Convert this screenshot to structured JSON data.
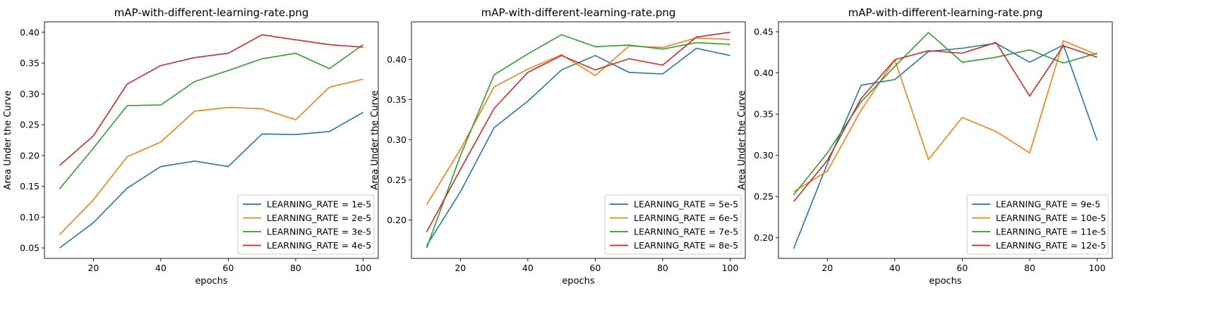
{
  "chart_data": [
    {
      "type": "line",
      "title": "mAP-with-different-learning-rate.png",
      "xlabel": "epochs",
      "ylabel": "Area Under the Curve",
      "x": [
        10,
        20,
        30,
        40,
        50,
        60,
        70,
        80,
        90,
        100
      ],
      "xlim": [
        5.5,
        104.5
      ],
      "ylim": [
        0.033,
        0.417
      ],
      "xticks": [
        20,
        40,
        60,
        80,
        100
      ],
      "yticks": [
        0.05,
        0.1,
        0.15,
        0.2,
        0.25,
        0.3,
        0.35,
        0.4
      ],
      "ytick_labels": [
        "0.05",
        "0.10",
        "0.15",
        "0.20",
        "0.25",
        "0.30",
        "0.35",
        "0.40"
      ],
      "grid": false,
      "legend_position": "lower-right",
      "series": [
        {
          "name": "LEARNING_RATE = 1e-5",
          "color": "#1f77b4",
          "values": [
            0.05,
            0.091,
            0.147,
            0.182,
            0.191,
            0.182,
            0.235,
            0.234,
            0.239,
            0.27
          ]
        },
        {
          "name": "LEARNING_RATE = 2e-5",
          "color": "#ff7f0e",
          "values": [
            0.072,
            0.128,
            0.198,
            0.222,
            0.272,
            0.278,
            0.276,
            0.258,
            0.311,
            0.324
          ]
        },
        {
          "name": "LEARNING_RATE = 3e-5",
          "color": "#2ca02c",
          "values": [
            0.146,
            0.212,
            0.281,
            0.282,
            0.32,
            0.338,
            0.357,
            0.366,
            0.341,
            0.38
          ]
        },
        {
          "name": "LEARNING_RATE = 4e-5",
          "color": "#d62728",
          "values": [
            0.184,
            0.232,
            0.316,
            0.346,
            0.359,
            0.366,
            0.396,
            0.388,
            0.38,
            0.376
          ]
        }
      ]
    },
    {
      "type": "line",
      "title": "mAP-with-different-learning-rate.png",
      "xlabel": "epochs",
      "ylabel": "Area Under the Curve",
      "x": [
        10,
        20,
        30,
        40,
        50,
        60,
        70,
        80,
        90,
        100
      ],
      "xlim": [
        5.5,
        104.5
      ],
      "ylim": [
        0.152,
        0.447
      ],
      "xticks": [
        20,
        40,
        60,
        80,
        100
      ],
      "yticks": [
        0.2,
        0.25,
        0.3,
        0.35,
        0.4
      ],
      "ytick_labels": [
        "0.20",
        "0.25",
        "0.30",
        "0.35",
        "0.40"
      ],
      "grid": false,
      "legend_position": "lower-right",
      "series": [
        {
          "name": "LEARNING_RATE = 5e-5",
          "color": "#1f77b4",
          "values": [
            0.168,
            0.235,
            0.315,
            0.348,
            0.387,
            0.405,
            0.384,
            0.382,
            0.414,
            0.405
          ]
        },
        {
          "name": "LEARNING_RATE = 6e-5",
          "color": "#ff7f0e",
          "values": [
            0.219,
            0.288,
            0.366,
            0.388,
            0.406,
            0.38,
            0.417,
            0.415,
            0.427,
            0.425
          ]
        },
        {
          "name": "LEARNING_RATE = 7e-5",
          "color": "#2ca02c",
          "values": [
            0.165,
            0.28,
            0.381,
            0.407,
            0.431,
            0.416,
            0.418,
            0.413,
            0.421,
            0.419
          ]
        },
        {
          "name": "LEARNING_RATE = 8e-5",
          "color": "#d62728",
          "values": [
            0.185,
            0.263,
            0.339,
            0.384,
            0.405,
            0.387,
            0.401,
            0.393,
            0.428,
            0.434
          ]
        }
      ]
    },
    {
      "type": "line",
      "title": "mAP-with-different-learning-rate.png",
      "xlabel": "epochs",
      "ylabel": "Area Under the Curve",
      "x": [
        10,
        20,
        30,
        40,
        50,
        60,
        70,
        80,
        90,
        100
      ],
      "xlim": [
        5.5,
        104.5
      ],
      "ylim": [
        0.175,
        0.462
      ],
      "xticks": [
        20,
        40,
        60,
        80,
        100
      ],
      "yticks": [
        0.2,
        0.25,
        0.3,
        0.35,
        0.4,
        0.45
      ],
      "ytick_labels": [
        "0.20",
        "0.25",
        "0.30",
        "0.35",
        "0.40",
        "0.45"
      ],
      "grid": false,
      "legend_position": "lower-right",
      "series": [
        {
          "name": "LEARNING_RATE = 9e-5",
          "color": "#1f77b4",
          "values": [
            0.187,
            0.29,
            0.385,
            0.392,
            0.426,
            0.43,
            0.436,
            0.413,
            0.434,
            0.318
          ]
        },
        {
          "name": "LEARNING_RATE = 10e-5",
          "color": "#ff7f0e",
          "values": [
            0.256,
            0.281,
            0.355,
            0.416,
            0.295,
            0.346,
            0.329,
            0.303,
            0.439,
            0.422
          ]
        },
        {
          "name": "LEARNING_RATE = 11e-5",
          "color": "#2ca02c",
          "values": [
            0.252,
            0.303,
            0.365,
            0.408,
            0.449,
            0.413,
            0.419,
            0.428,
            0.412,
            0.424
          ]
        },
        {
          "name": "LEARNING_RATE = 12e-5",
          "color": "#d62728",
          "values": [
            0.244,
            0.294,
            0.369,
            0.416,
            0.427,
            0.424,
            0.437,
            0.372,
            0.433,
            0.419
          ]
        }
      ]
    }
  ]
}
